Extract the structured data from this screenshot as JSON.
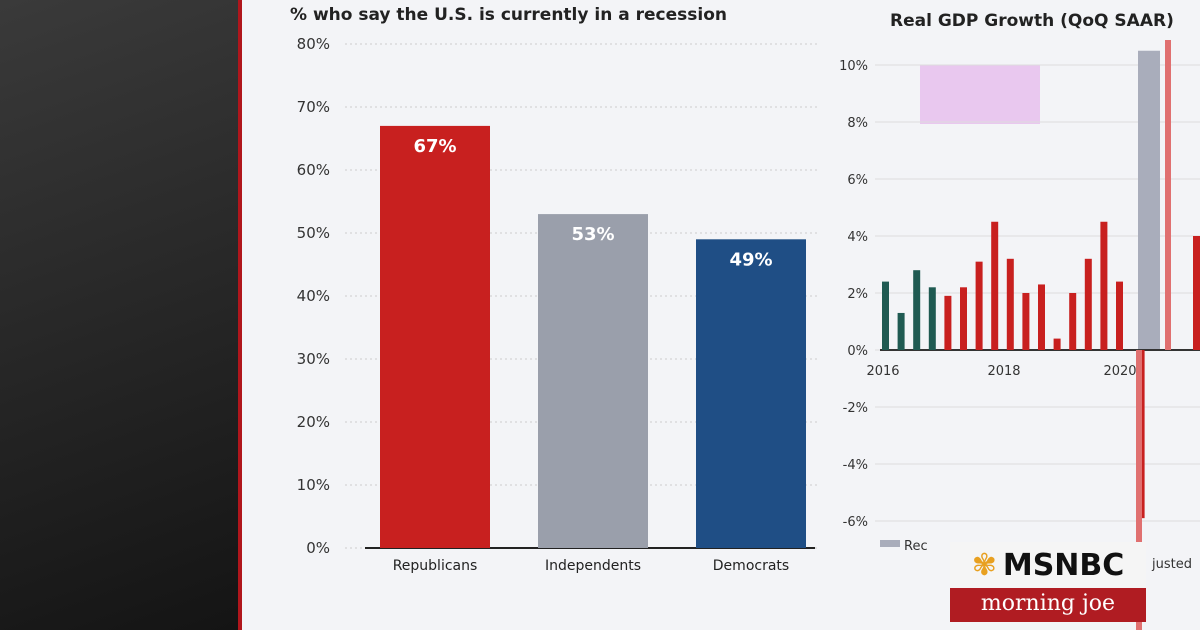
{
  "chart_data": [
    {
      "type": "bar",
      "title": "% who say the U.S. is currently in a recession",
      "categories": [
        "Republicans",
        "Independents",
        "Democrats"
      ],
      "values": [
        67,
        53,
        49
      ],
      "labels": [
        "67%",
        "53%",
        "49%"
      ],
      "colors": [
        "#c8201f",
        "#9a9fab",
        "#1f4e85"
      ],
      "ylim": [
        0,
        80
      ],
      "yticks": [
        "0%",
        "10%",
        "20%",
        "30%",
        "40%",
        "50%",
        "60%",
        "70%",
        "80%"
      ],
      "grid": true
    },
    {
      "type": "bar",
      "title": "Real GDP Growth (QoQ SAAR)",
      "xticks": [
        "2016",
        "2018",
        "2020"
      ],
      "yticks": [
        "-6%",
        "-4%",
        "-2%",
        "0%",
        "2%",
        "4%",
        "6%",
        "8%",
        "10%"
      ],
      "ylim": [
        -6,
        10
      ],
      "values": [
        2.4,
        1.3,
        2.8,
        2.2,
        1.9,
        2.2,
        3.1,
        4.5,
        3.2,
        2.0,
        2.3,
        0.4,
        2.0,
        3.2,
        4.5,
        2.4,
        -5.9
      ],
      "colors": {
        "early": "#1f5a52",
        "later": "#c8201f",
        "recession": "#a9adbb"
      },
      "legend_fragments": [
        "Rec",
        "justed"
      ],
      "legend_placement": "bottom"
    }
  ],
  "branding": {
    "network": "MSNBC",
    "show": "morning joe"
  }
}
